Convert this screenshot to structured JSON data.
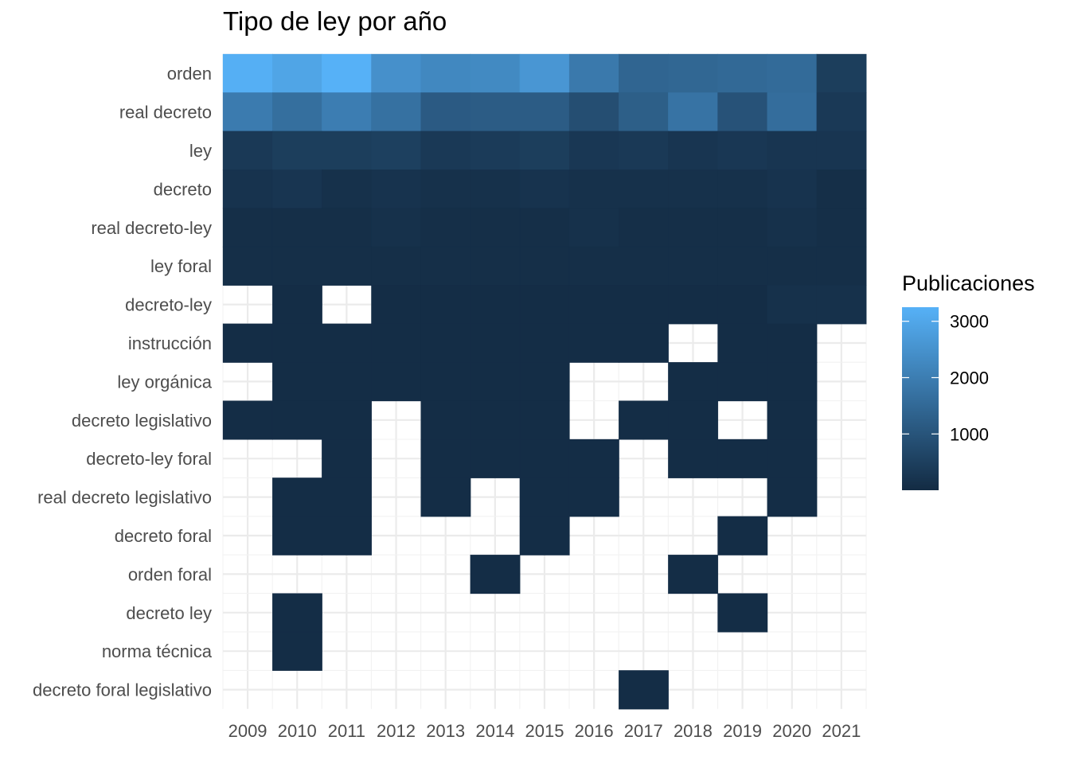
{
  "chart_data": {
    "type": "heatmap",
    "title": "Tipo de ley por año",
    "xlabel": "",
    "ylabel": "",
    "x": [
      "2009",
      "2010",
      "2011",
      "2012",
      "2013",
      "2014",
      "2015",
      "2016",
      "2017",
      "2018",
      "2019",
      "2020",
      "2021"
    ],
    "y": [
      "orden",
      "real decreto",
      "ley",
      "decreto",
      "real decreto-ley",
      "ley foral",
      "decreto-ley",
      "instrucción",
      "ley orgánica",
      "decreto legislativo",
      "decreto-ley foral",
      "real decreto legislativo",
      "decreto foral",
      "orden foral",
      "decreto ley",
      "norma técnica",
      "decreto foral legislativo"
    ],
    "values": [
      [
        3200,
        2950,
        3250,
        2450,
        2250,
        2300,
        2600,
        1900,
        1400,
        1450,
        1500,
        1550,
        450
      ],
      [
        1950,
        1650,
        2000,
        1700,
        1150,
        1200,
        1200,
        850,
        1250,
        1750,
        950,
        1600,
        350
      ],
      [
        350,
        450,
        450,
        500,
        350,
        400,
        450,
        300,
        350,
        250,
        300,
        250,
        250
      ],
      [
        200,
        250,
        150,
        200,
        150,
        150,
        200,
        150,
        150,
        150,
        150,
        200,
        100
      ],
      [
        100,
        100,
        100,
        150,
        100,
        100,
        100,
        150,
        100,
        100,
        100,
        150,
        100
      ],
      [
        100,
        100,
        100,
        100,
        100,
        100,
        100,
        100,
        100,
        100,
        100,
        100,
        100
      ],
      [
        null,
        50,
        null,
        50,
        50,
        50,
        50,
        50,
        50,
        50,
        50,
        150,
        150
      ],
      [
        50,
        50,
        50,
        50,
        50,
        50,
        50,
        50,
        50,
        null,
        50,
        50,
        null
      ],
      [
        null,
        50,
        50,
        50,
        50,
        50,
        50,
        null,
        null,
        50,
        50,
        50,
        null
      ],
      [
        50,
        50,
        50,
        null,
        50,
        50,
        50,
        null,
        50,
        50,
        null,
        50,
        null
      ],
      [
        null,
        null,
        50,
        null,
        50,
        50,
        50,
        50,
        null,
        50,
        50,
        50,
        null
      ],
      [
        null,
        50,
        50,
        null,
        50,
        null,
        50,
        50,
        null,
        null,
        null,
        50,
        null
      ],
      [
        null,
        50,
        50,
        null,
        null,
        null,
        50,
        null,
        null,
        null,
        50,
        null,
        null
      ],
      [
        null,
        null,
        null,
        null,
        null,
        50,
        null,
        null,
        null,
        50,
        null,
        null,
        null
      ],
      [
        null,
        50,
        null,
        null,
        null,
        null,
        null,
        null,
        null,
        null,
        50,
        null,
        null
      ],
      [
        null,
        50,
        null,
        null,
        null,
        null,
        null,
        null,
        null,
        null,
        null,
        null,
        null
      ],
      [
        null,
        null,
        null,
        null,
        null,
        null,
        null,
        null,
        50,
        null,
        null,
        null,
        null
      ]
    ],
    "color_scale": {
      "low": "#132B43",
      "high": "#56B1F7",
      "min": 1,
      "max": 3250
    },
    "legend": {
      "title": "Publicaciones",
      "position": "right",
      "breaks": [
        1000,
        2000,
        3000
      ],
      "labels": [
        "1000",
        "2000",
        "3000"
      ]
    },
    "grid": true
  }
}
